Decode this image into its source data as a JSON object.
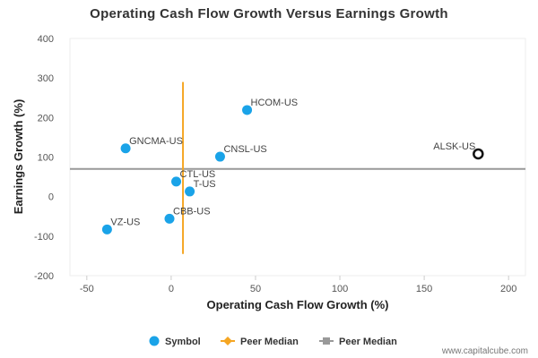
{
  "chart_data": {
    "type": "scatter",
    "title": "Operating Cash Flow Growth Versus Earnings Growth",
    "xlabel": "Operating Cash Flow Growth (%)",
    "ylabel": "Earnings Growth (%)",
    "xlim": [
      -60,
      210
    ],
    "ylim": [
      -200,
      400
    ],
    "xticks": [
      -50,
      0,
      50,
      100,
      150,
      200
    ],
    "yticks": [
      -200,
      -100,
      0,
      100,
      200,
      300,
      400
    ],
    "grid": false,
    "legend_position": "bottom",
    "points": [
      {
        "label": "HCOM-US",
        "x": 45,
        "y": 219,
        "highlight": false
      },
      {
        "label": "GNCMA-US",
        "x": -27,
        "y": 122,
        "highlight": false
      },
      {
        "label": "CNSL-US",
        "x": 29,
        "y": 101,
        "highlight": false
      },
      {
        "label": "CTL-US",
        "x": 3,
        "y": 38,
        "highlight": false
      },
      {
        "label": "T-US",
        "x": 11,
        "y": 13,
        "highlight": false
      },
      {
        "label": "CBB-US",
        "x": -1,
        "y": -56,
        "highlight": false
      },
      {
        "label": "VZ-US",
        "x": -38,
        "y": -83,
        "highlight": false
      },
      {
        "label": "ALSK-US",
        "x": 182,
        "y": 108,
        "highlight": true
      }
    ],
    "peer_median_x": 7,
    "peer_median_x_range": [
      -145,
      290
    ],
    "peer_median_y": 70,
    "legend": [
      {
        "name": "Symbol",
        "kind": "dot",
        "color": "#1aa3e8"
      },
      {
        "name": "Peer Median",
        "kind": "line-diamond",
        "color": "#f5a623"
      },
      {
        "name": "Peer Median",
        "kind": "line-square",
        "color": "#999999"
      }
    ],
    "colors": {
      "symbol": "#1aa3e8",
      "peer_median_x": "#f5a623",
      "peer_median_y": "#999999",
      "highlight": "#111111"
    }
  },
  "credit": "www.capitalcube.com"
}
